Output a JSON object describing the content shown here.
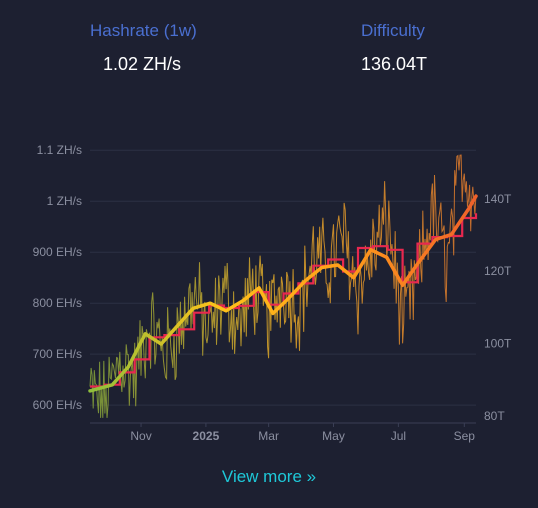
{
  "stats": {
    "hashrate": {
      "label": "Hashrate (1w)",
      "value": "1.02 ZH/s"
    },
    "difficulty": {
      "label": "Difficulty",
      "value": "136.04T"
    }
  },
  "link": {
    "view_more": "View more »"
  },
  "chart_data": {
    "type": "line",
    "x_axis": {
      "ticks": [
        {
          "label": "Nov",
          "date": "2024-11-01",
          "bold": false
        },
        {
          "label": "2025",
          "date": "2025-01-01",
          "bold": true
        },
        {
          "label": "Mar",
          "date": "2025-03-01",
          "bold": false
        },
        {
          "label": "May",
          "date": "2025-05-01",
          "bold": false
        },
        {
          "label": "Jul",
          "date": "2025-07-01",
          "bold": false
        },
        {
          "label": "Sep",
          "date": "2025-09-01",
          "bold": false
        }
      ],
      "range": [
        "2024-09-14",
        "2025-09-12"
      ]
    },
    "y_axis_left": {
      "unit": "EH/s",
      "range": [
        565,
        1175
      ],
      "ticks": [
        {
          "value": 600,
          "label": "600 EH/s"
        },
        {
          "value": 700,
          "label": "700 EH/s"
        },
        {
          "value": 800,
          "label": "800 EH/s"
        },
        {
          "value": 900,
          "label": "900 EH/s"
        },
        {
          "value": 1000,
          "label": "1 ZH/s"
        },
        {
          "value": 1100,
          "label": "1.1 ZH/s"
        }
      ]
    },
    "y_axis_right": {
      "unit": "T",
      "range": [
        78,
        164
      ],
      "ticks": [
        {
          "value": 80,
          "label": "80T"
        },
        {
          "value": 100,
          "label": "100T"
        },
        {
          "value": 120,
          "label": "120T"
        },
        {
          "value": 140,
          "label": "140T"
        }
      ]
    },
    "grid": true,
    "series": [
      {
        "role": "hashrate-daily",
        "axis": "left",
        "color_gradient": [
          "#7d9c3a",
          "#d8a028",
          "#d5732c"
        ],
        "x": [
          "2024-09-14",
          "2024-09-28",
          "2024-10-12",
          "2024-10-26",
          "2024-11-09",
          "2024-11-23",
          "2024-12-07",
          "2024-12-21",
          "2025-01-04",
          "2025-01-18",
          "2025-02-01",
          "2025-02-15",
          "2025-03-01",
          "2025-03-15",
          "2025-03-29",
          "2025-04-12",
          "2025-04-26",
          "2025-05-10",
          "2025-05-24",
          "2025-06-07",
          "2025-06-21",
          "2025-07-05",
          "2025-07-19",
          "2025-08-02",
          "2025-08-16",
          "2025-08-30",
          "2025-09-12"
        ],
        "values": [
          625,
          600,
          690,
          655,
          760,
          700,
          745,
          820,
          735,
          825,
          755,
          830,
          770,
          845,
          790,
          890,
          870,
          935,
          825,
          900,
          965,
          760,
          845,
          985,
          880,
          1075,
          1000
        ]
      },
      {
        "role": "hashrate-1w-average",
        "axis": "left",
        "color_gradient": [
          "#8fbf3c",
          "#ffc21a",
          "#ff9c1a",
          "#f0602a"
        ],
        "x": [
          "2024-09-14",
          "2024-10-05",
          "2024-10-20",
          "2024-11-05",
          "2024-11-20",
          "2024-12-05",
          "2024-12-20",
          "2025-01-05",
          "2025-01-20",
          "2025-02-05",
          "2025-02-20",
          "2025-03-05",
          "2025-03-20",
          "2025-04-05",
          "2025-04-20",
          "2025-05-05",
          "2025-05-20",
          "2025-06-05",
          "2025-06-20",
          "2025-07-05",
          "2025-07-20",
          "2025-08-05",
          "2025-08-20",
          "2025-09-05",
          "2025-09-12"
        ],
        "values": [
          628,
          640,
          675,
          740,
          720,
          755,
          790,
          800,
          785,
          805,
          830,
          780,
          810,
          845,
          870,
          875,
          850,
          905,
          890,
          835,
          880,
          925,
          935,
          985,
          1010
        ]
      },
      {
        "role": "difficulty",
        "axis": "right",
        "color": "#e8284f",
        "x": [
          "2024-09-14",
          "2024-09-28",
          "2024-10-12",
          "2024-10-26",
          "2024-11-09",
          "2024-11-23",
          "2024-12-07",
          "2024-12-21",
          "2025-01-04",
          "2025-01-18",
          "2025-02-01",
          "2025-02-15",
          "2025-03-01",
          "2025-03-15",
          "2025-03-29",
          "2025-04-12",
          "2025-04-26",
          "2025-05-10",
          "2025-05-24",
          "2025-06-07",
          "2025-06-21",
          "2025-07-05",
          "2025-07-19",
          "2025-08-02",
          "2025-08-16",
          "2025-08-30",
          "2025-09-12"
        ],
        "values": [
          88.1,
          88.6,
          92.0,
          95.6,
          101.7,
          102.3,
          103.9,
          108.5,
          110.5,
          109.8,
          110.4,
          114.2,
          110.7,
          113.8,
          116.6,
          121.5,
          123.2,
          119.9,
          126.4,
          126.9,
          125.9,
          116.9,
          127.6,
          129.4,
          129.7,
          134.7,
          136.0
        ]
      }
    ]
  }
}
